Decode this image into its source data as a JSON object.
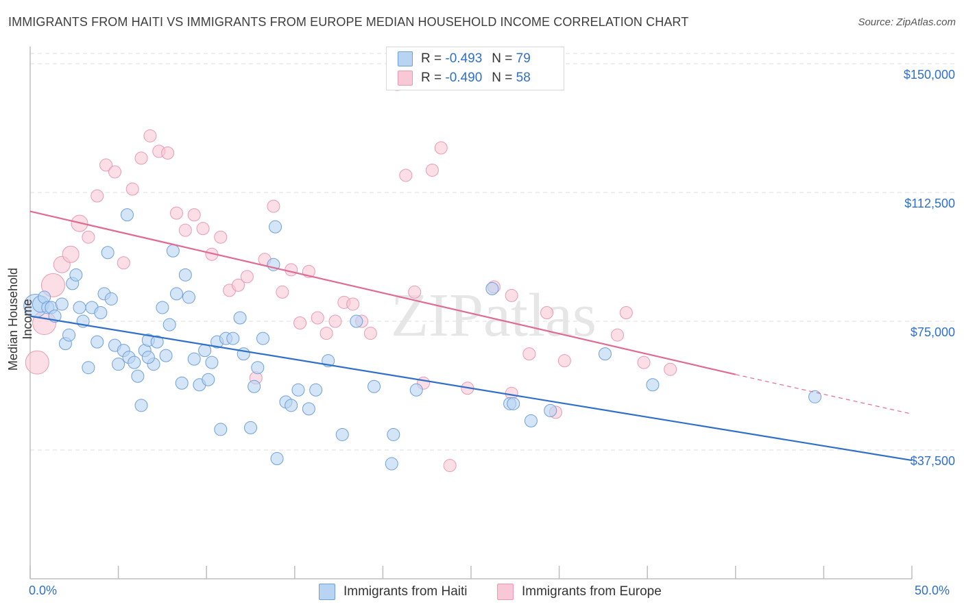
{
  "title": "IMMIGRANTS FROM HAITI VS IMMIGRANTS FROM EUROPE MEDIAN HOUSEHOLD INCOME CORRELATION CHART",
  "source": "Source: ZipAtlas.com",
  "watermark": "ZIPatlas",
  "legend": {
    "haiti": {
      "r_label": "R =",
      "r_value": "-0.493",
      "n_label": "N =",
      "n_value": "79"
    },
    "europe": {
      "r_label": "R =",
      "r_value": "-0.490",
      "n_label": "N =",
      "n_value": "58"
    }
  },
  "colors": {
    "haiti_fill": "#b9d3f3",
    "haiti_stroke": "#6d9fd9",
    "haiti_line": "#2f6fc9",
    "europe_fill": "#f8c8d6",
    "europe_stroke": "#e99ab3",
    "europe_line": "#e06a92",
    "grid": "#dddddd",
    "axis_label": "#2f6fc9"
  },
  "chart_data": {
    "type": "scatter",
    "title": "IMMIGRANTS FROM HAITI VS IMMIGRANTS FROM EUROPE MEDIAN HOUSEHOLD INCOME CORRELATION CHART",
    "xlabel": "",
    "ylabel": "Median Household Income",
    "xlim": [
      0,
      50
    ],
    "ylim": [
      0,
      153000
    ],
    "x_tick_labels": [
      "0.0%",
      "50.0%"
    ],
    "y_ticks": [
      37500,
      75000,
      112500,
      150000
    ],
    "y_tick_labels": [
      "$37,500",
      "$75,000",
      "$112,500",
      "$150,000"
    ],
    "legend_entries": [
      "Immigrants from Haiti",
      "Immigrants from Europe"
    ],
    "series": [
      {
        "name": "Immigrants from Haiti",
        "trend": {
          "x0": 0,
          "y0": 76500,
          "x1": 50,
          "y1": 34500
        },
        "points": [
          [
            0.3,
            79500,
            3
          ],
          [
            0.6,
            80000,
            2
          ],
          [
            0.8,
            82000,
            1
          ],
          [
            1.0,
            79000,
            1
          ],
          [
            1.2,
            79000,
            1
          ],
          [
            1.4,
            76500,
            1
          ],
          [
            1.8,
            80000,
            1
          ],
          [
            2.0,
            68500,
            1
          ],
          [
            2.2,
            71000,
            1
          ],
          [
            2.4,
            86000,
            1
          ],
          [
            2.6,
            88500,
            1
          ],
          [
            2.8,
            79000,
            1
          ],
          [
            3.0,
            75000,
            1
          ],
          [
            3.3,
            61500,
            1
          ],
          [
            3.5,
            79000,
            1
          ],
          [
            3.8,
            69000,
            1
          ],
          [
            4.0,
            77500,
            1
          ],
          [
            4.2,
            83000,
            1
          ],
          [
            4.4,
            95000,
            1
          ],
          [
            4.6,
            81500,
            1
          ],
          [
            4.8,
            68000,
            1
          ],
          [
            5.0,
            62500,
            1
          ],
          [
            5.3,
            66500,
            1
          ],
          [
            5.6,
            64500,
            1
          ],
          [
            5.9,
            63000,
            1
          ],
          [
            6.1,
            59000,
            1
          ],
          [
            6.3,
            50500,
            1
          ],
          [
            6.5,
            66500,
            1
          ],
          [
            6.7,
            69500,
            1
          ],
          [
            7.0,
            62500,
            1
          ],
          [
            7.2,
            69000,
            1
          ],
          [
            7.5,
            79000,
            1
          ],
          [
            7.7,
            65000,
            1
          ],
          [
            7.9,
            74000,
            1
          ],
          [
            8.1,
            95500,
            1
          ],
          [
            8.3,
            83000,
            1
          ],
          [
            8.6,
            57000,
            1
          ],
          [
            8.8,
            88500,
            1
          ],
          [
            9.0,
            82000,
            1
          ],
          [
            9.3,
            64000,
            1
          ],
          [
            9.6,
            56500,
            1
          ],
          [
            9.9,
            66500,
            1
          ],
          [
            10.1,
            58000,
            1
          ],
          [
            10.3,
            63000,
            1
          ],
          [
            10.6,
            69000,
            1
          ],
          [
            10.8,
            43500,
            1
          ],
          [
            11.1,
            70000,
            1
          ],
          [
            11.5,
            70000,
            1
          ],
          [
            11.9,
            76000,
            1
          ],
          [
            12.1,
            65500,
            1
          ],
          [
            12.5,
            44000,
            1
          ],
          [
            12.7,
            56000,
            1
          ],
          [
            12.9,
            61500,
            1
          ],
          [
            13.2,
            70000,
            1
          ],
          [
            13.8,
            91500,
            1
          ],
          [
            13.9,
            102500,
            1
          ],
          [
            14.0,
            35000,
            1
          ],
          [
            14.5,
            51500,
            1
          ],
          [
            14.8,
            50500,
            1
          ],
          [
            15.2,
            55000,
            1
          ],
          [
            15.8,
            49500,
            1
          ],
          [
            16.2,
            55000,
            1
          ],
          [
            16.9,
            63500,
            1
          ],
          [
            17.7,
            42000,
            1
          ],
          [
            18.5,
            75000,
            1
          ],
          [
            19.5,
            56000,
            1
          ],
          [
            20.5,
            33500,
            1
          ],
          [
            20.6,
            42000,
            1
          ],
          [
            21.9,
            55000,
            1
          ],
          [
            26.2,
            84500,
            1
          ],
          [
            27.2,
            51000,
            1
          ],
          [
            27.4,
            51000,
            1
          ],
          [
            28.4,
            46000,
            1
          ],
          [
            29.5,
            49000,
            1
          ],
          [
            32.6,
            65500,
            1
          ],
          [
            35.3,
            56500,
            1
          ],
          [
            44.5,
            53000,
            1
          ],
          [
            6.7,
            64500,
            1
          ],
          [
            5.5,
            106000,
            1
          ]
        ]
      },
      {
        "name": "Immigrants from Europe",
        "trend": {
          "x0": 0,
          "y0": 107000,
          "x1": 40,
          "y1": 59500,
          "dash_x1": 50,
          "dash_y1": 48000
        },
        "points": [
          [
            0.4,
            63000,
            3
          ],
          [
            0.8,
            74500,
            3
          ],
          [
            1.3,
            85500,
            3
          ],
          [
            1.8,
            91500,
            2
          ],
          [
            2.3,
            94500,
            2
          ],
          [
            2.8,
            103500,
            2
          ],
          [
            3.3,
            99500,
            1
          ],
          [
            3.8,
            111500,
            1
          ],
          [
            4.3,
            120500,
            1
          ],
          [
            4.8,
            118500,
            1
          ],
          [
            5.3,
            92000,
            1
          ],
          [
            5.8,
            113500,
            1
          ],
          [
            6.3,
            122500,
            1
          ],
          [
            6.8,
            129000,
            1
          ],
          [
            7.3,
            124500,
            1
          ],
          [
            7.8,
            124000,
            1
          ],
          [
            8.3,
            106500,
            1
          ],
          [
            8.8,
            101500,
            1
          ],
          [
            9.3,
            106000,
            1
          ],
          [
            9.8,
            102000,
            1
          ],
          [
            10.3,
            94500,
            1
          ],
          [
            10.8,
            99500,
            1
          ],
          [
            11.3,
            84000,
            1
          ],
          [
            11.8,
            85500,
            1
          ],
          [
            12.3,
            88000,
            1
          ],
          [
            12.8,
            58500,
            1
          ],
          [
            13.3,
            93000,
            1
          ],
          [
            13.8,
            108500,
            1
          ],
          [
            14.3,
            83500,
            1
          ],
          [
            14.8,
            90000,
            1
          ],
          [
            15.3,
            74500,
            1
          ],
          [
            15.8,
            89500,
            1
          ],
          [
            16.3,
            76000,
            1
          ],
          [
            16.8,
            71500,
            1
          ],
          [
            17.3,
            75000,
            1
          ],
          [
            17.8,
            80500,
            1
          ],
          [
            18.3,
            80000,
            1
          ],
          [
            18.8,
            75000,
            1
          ],
          [
            19.3,
            71500,
            1
          ],
          [
            20.8,
            144000,
            1
          ],
          [
            21.3,
            117500,
            1
          ],
          [
            21.8,
            83500,
            1
          ],
          [
            22.3,
            57000,
            1
          ],
          [
            22.8,
            119000,
            1
          ],
          [
            23.3,
            125500,
            1
          ],
          [
            23.8,
            33000,
            1
          ],
          [
            24.8,
            55500,
            1
          ],
          [
            26.3,
            85000,
            1
          ],
          [
            27.3,
            82500,
            1
          ],
          [
            28.3,
            65500,
            1
          ],
          [
            29.3,
            77500,
            1
          ],
          [
            29.8,
            48500,
            1
          ],
          [
            30.3,
            63500,
            1
          ],
          [
            33.3,
            71000,
            1
          ],
          [
            33.8,
            77500,
            1
          ],
          [
            34.8,
            63000,
            1
          ],
          [
            36.3,
            61000,
            1
          ],
          [
            27.3,
            54000,
            1
          ]
        ]
      }
    ]
  }
}
